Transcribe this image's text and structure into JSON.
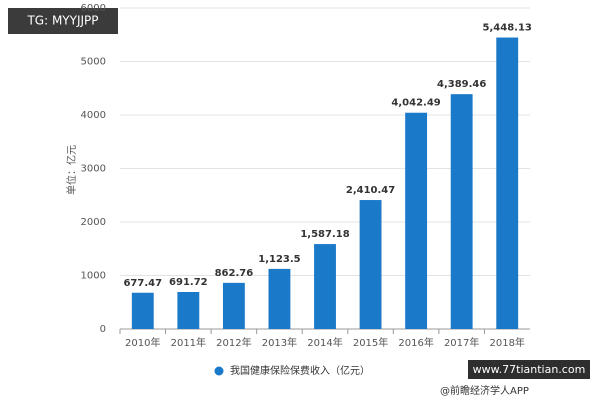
{
  "chart_data": {
    "type": "bar",
    "y_label": "单位：亿元",
    "categories": [
      "2010年",
      "2011年",
      "2012年",
      "2013年",
      "2014年",
      "2015年",
      "2016年",
      "2017年",
      "2018年"
    ],
    "series": [
      {
        "name": "我国健康保险保费收入（亿元）",
        "color": "#1b79c9",
        "values": [
          677.47,
          691.72,
          862.76,
          1123.5,
          1587.18,
          2410.47,
          4042.49,
          4389.46,
          5448.13
        ],
        "value_labels": [
          "677.47",
          "691.72",
          "862.76",
          "1,123.5",
          "1,587.18",
          "2,410.47",
          "4,042.49",
          "4,389.46",
          "5,448.13"
        ]
      }
    ],
    "ylim": [
      0,
      6000
    ],
    "yticks": [
      0,
      1000,
      2000,
      3000,
      4000,
      5000,
      6000
    ],
    "grid": true,
    "legend": "bottom"
  },
  "overlay": {
    "badge": "TG: MYYJJPP",
    "site": "www.77tiantian.com",
    "source": "@前瞻经济学人APP"
  }
}
